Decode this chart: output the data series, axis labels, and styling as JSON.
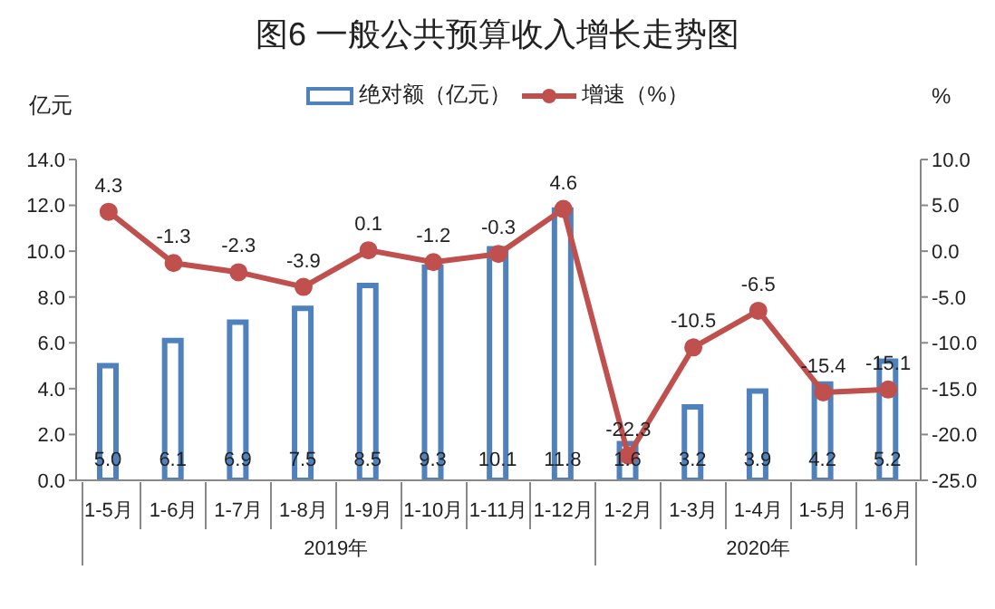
{
  "chart_data": {
    "type": "bar",
    "title": "图6 一般公共预算收入增长走势图",
    "ylabel": "亿元",
    "y2label": "%",
    "categories": [
      "1-5月",
      "1-6月",
      "1-7月",
      "1-8月",
      "1-9月",
      "1-10月",
      "1-11月",
      "1-12月",
      "1-2月",
      "1-3月",
      "1-4月",
      "1-5月",
      "1-6月"
    ],
    "series": [
      {
        "name": "绝对额（亿元）",
        "color": "#4f81bd",
        "values": [
          5.0,
          6.1,
          6.9,
          7.5,
          8.5,
          9.3,
          10.1,
          11.8,
          1.6,
          3.2,
          3.9,
          4.2,
          5.2
        ],
        "value_labels": [
          "5.0",
          "6.1",
          "6.9",
          "7.5",
          "8.5",
          "9.3",
          "10.1",
          "11.8",
          "1.6",
          "3.2",
          "3.9",
          "4.2",
          "5.2"
        ]
      },
      {
        "name": "增速（%）",
        "type": "line",
        "axis": "y2",
        "color": "#c0504d",
        "values": [
          4.3,
          -1.3,
          -2.3,
          -3.9,
          0.1,
          -1.2,
          -0.3,
          4.6,
          -22.3,
          -10.5,
          -6.5,
          -15.4,
          -15.1
        ],
        "value_labels": [
          "4.3",
          "-1.3",
          "-2.3",
          "-3.9",
          "0.1",
          "-1.2",
          "-0.3",
          "4.6",
          "-22.3",
          "-10.5",
          "-6.5",
          "-15.4",
          "-15.1"
        ]
      }
    ],
    "ylim": [
      0,
      14
    ],
    "yticks": [
      {
        "value": 0,
        "label": "0.0"
      },
      {
        "value": 2,
        "label": "2.0"
      },
      {
        "value": 4,
        "label": "4.0"
      },
      {
        "value": 6,
        "label": "6.0"
      },
      {
        "value": 8,
        "label": "8.0"
      },
      {
        "value": 10,
        "label": "10.0"
      },
      {
        "value": 12,
        "label": "12.0"
      },
      {
        "value": 14,
        "label": "14.0"
      }
    ],
    "y2lim": [
      -25,
      10
    ],
    "y2ticks": [
      {
        "value": -25,
        "label": "-25.0"
      },
      {
        "value": -20,
        "label": "-20.0"
      },
      {
        "value": -15,
        "label": "-15.0"
      },
      {
        "value": -10,
        "label": "-10.0"
      },
      {
        "value": -5,
        "label": "-5.0"
      },
      {
        "value": 0,
        "label": "0.0"
      },
      {
        "value": 5,
        "label": "5.0"
      },
      {
        "value": 10,
        "label": "10.0"
      }
    ],
    "annotations": [
      "2019年",
      "2020年"
    ],
    "legend": "top",
    "marker": "circle",
    "line_style": "solid"
  }
}
